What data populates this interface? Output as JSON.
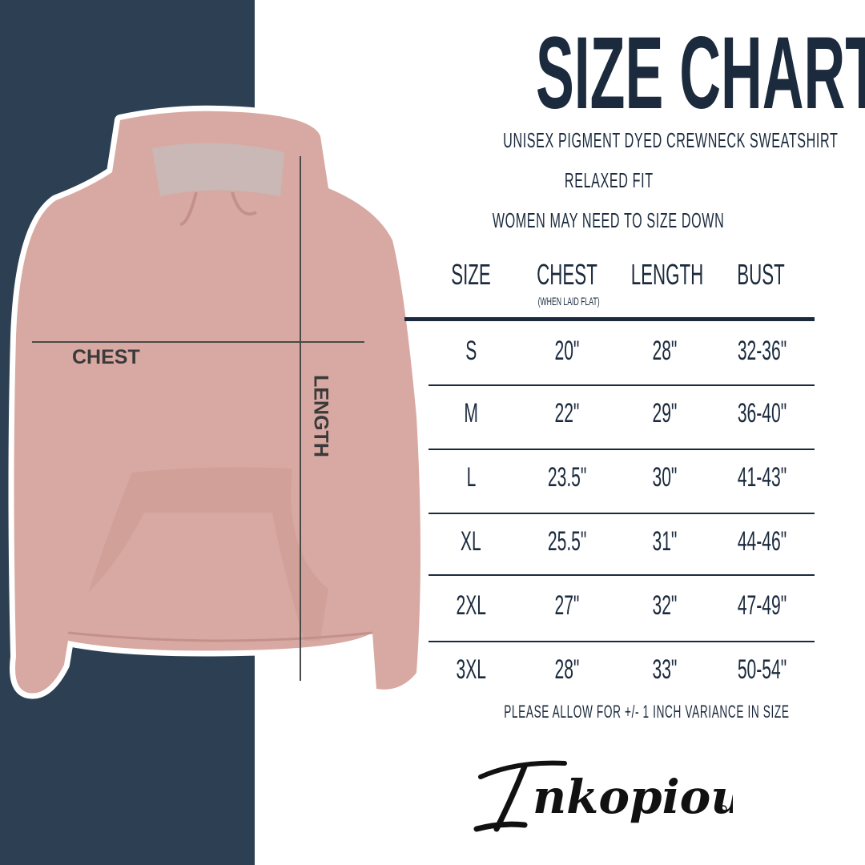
{
  "title": "SIZE CHART",
  "subtitle_lines": [
    "UNISEX PIGMENT DYED CREWNECK SWEATSHIRT",
    "RELAXED FIT",
    "WOMEN MAY NEED TO SIZE DOWN"
  ],
  "diagram_labels": {
    "chest": "CHEST",
    "length": "LENGTH"
  },
  "table": {
    "headers": [
      "SIZE",
      "CHEST",
      "LENGTH",
      "BUST"
    ],
    "chest_note": "(WHEN LAID FLAT)",
    "rows": [
      [
        "S",
        "20\"",
        "28\"",
        "32-36\""
      ],
      [
        "M",
        "22\"",
        "29\"",
        "36-40\""
      ],
      [
        "L",
        "23.5\"",
        "30\"",
        "41-43\""
      ],
      [
        "XL",
        "25.5\"",
        "31\"",
        "44-46\""
      ],
      [
        "2XL",
        "27\"",
        "32\"",
        "47-49\""
      ],
      [
        "3XL",
        "28\"",
        "33\"",
        "50-54\""
      ]
    ]
  },
  "footnote": "PLEASE ALLOW FOR +/- 1 INCH VARIANCE IN SIZE",
  "brand": "Inkopious",
  "colors": {
    "navy_band": "#2d4053",
    "text": "#1b2a3d",
    "garment": "#d8a9a2"
  }
}
